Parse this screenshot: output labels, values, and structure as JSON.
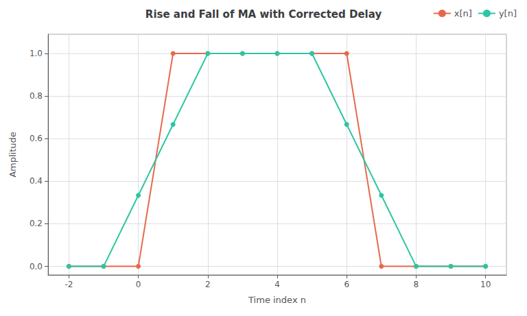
{
  "chart_data": {
    "type": "line",
    "title": "Rise and Fall of MA with Corrected Delay",
    "xlabel": "Time index n",
    "ylabel": "Amplitude",
    "x": [
      -2,
      -1,
      0,
      1,
      2,
      3,
      4,
      5,
      6,
      7,
      8,
      9,
      10
    ],
    "series": [
      {
        "name": "x[n]",
        "color": "#E8694A",
        "marker": "o",
        "values": [
          0,
          0,
          0,
          1,
          1,
          1,
          1,
          1,
          1,
          0,
          0,
          0,
          0
        ]
      },
      {
        "name": "y[n]",
        "color": "#2DC5A2",
        "marker": "o",
        "values": [
          0,
          0,
          0.3333,
          0.6667,
          1.0,
          1.0,
          1.0,
          1.0,
          0.6667,
          0.3333,
          0.0,
          0.0,
          0.0
        ]
      }
    ],
    "xlim": [
      -2.6,
      10.6
    ],
    "ylim": [
      -0.04,
      1.09
    ],
    "xticks": [
      -2,
      0,
      2,
      4,
      6,
      8,
      10
    ],
    "yticks": [
      {
        "value": 0,
        "label": "0.0"
      },
      0.2,
      0.4,
      0.6,
      0.8,
      {
        "value": 1,
        "label": "1.0"
      }
    ],
    "grid": true,
    "legend": "upper right"
  }
}
